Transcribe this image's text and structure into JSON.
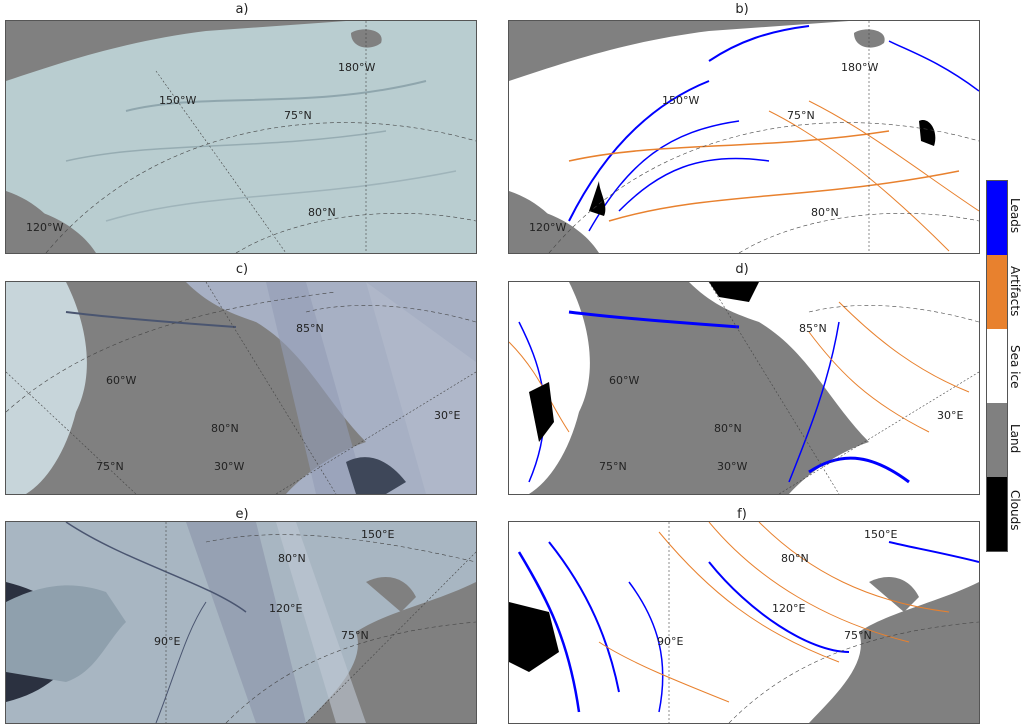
{
  "panels": [
    {
      "id": "a",
      "title": "a)",
      "type": "raw",
      "labels": [
        "180°W",
        "150°W",
        "75°N",
        "80°N",
        "120°W"
      ]
    },
    {
      "id": "b",
      "title": "b)",
      "type": "classified",
      "labels": [
        "180°W",
        "150°W",
        "75°N",
        "80°N",
        "120°W"
      ]
    },
    {
      "id": "c",
      "title": "c)",
      "type": "raw",
      "labels": [
        "85°N",
        "60°W",
        "80°N",
        "30°E",
        "75°N",
        "30°W"
      ]
    },
    {
      "id": "d",
      "title": "d)",
      "type": "classified",
      "labels": [
        "85°N",
        "60°W",
        "80°N",
        "30°E",
        "75°N",
        "30°W"
      ]
    },
    {
      "id": "e",
      "title": "e)",
      "type": "raw",
      "labels": [
        "150°E",
        "80°N",
        "120°E",
        "90°E",
        "75°N"
      ]
    },
    {
      "id": "f",
      "title": "f)",
      "type": "classified",
      "labels": [
        "150°E",
        "80°N",
        "120°E",
        "90°E",
        "75°N"
      ]
    }
  ],
  "legend": {
    "items": [
      {
        "label": "Leads",
        "color": "#0000ff"
      },
      {
        "label": "Artifacts",
        "color": "#e8812e"
      },
      {
        "label": "Sea ice",
        "color": "#ffffff"
      },
      {
        "label": "Land",
        "color": "#808080"
      },
      {
        "label": "Clouds",
        "color": "#000000"
      }
    ]
  },
  "chart_data": {
    "type": "other",
    "title": "",
    "legend_placement": "right",
    "classes": [
      "Leads",
      "Artifacts",
      "Sea ice",
      "Land",
      "Clouds"
    ]
  }
}
